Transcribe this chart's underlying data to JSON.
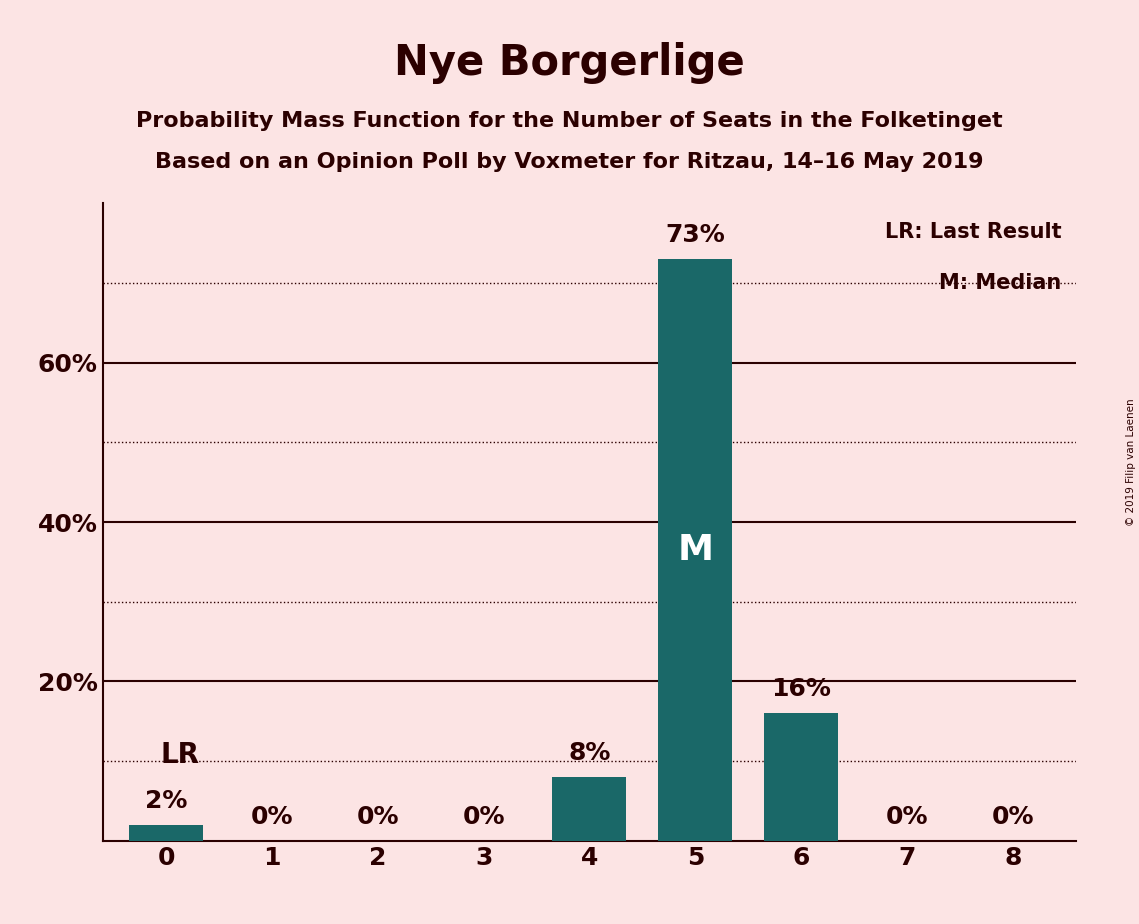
{
  "title": "Nye Borgerlige",
  "subtitle1": "Probability Mass Function for the Number of Seats in the Folketinget",
  "subtitle2": "Based on an Opinion Poll by Voxmeter for Ritzau, 14–16 May 2019",
  "copyright": "© 2019 Filip van Laenen",
  "categories": [
    0,
    1,
    2,
    3,
    4,
    5,
    6,
    7,
    8
  ],
  "values": [
    2,
    0,
    0,
    0,
    8,
    73,
    16,
    0,
    0
  ],
  "bar_color": "#1a6868",
  "background_color": "#fce4e4",
  "text_color": "#2b0000",
  "ylim": [
    0,
    80
  ],
  "yticks": [
    0,
    20,
    40,
    60,
    80
  ],
  "dotted_gridlines": [
    10,
    30,
    50,
    70
  ],
  "solid_gridlines": [
    20,
    40,
    60
  ],
  "lr_bar_index": 0,
  "median_bar_index": 5,
  "lr_label": "LR",
  "median_label": "M",
  "legend_lr": "LR: Last Result",
  "legend_m": "M: Median",
  "title_fontsize": 30,
  "subtitle_fontsize": 16,
  "tick_fontsize": 18,
  "bar_label_fontsize": 18,
  "legend_fontsize": 15
}
